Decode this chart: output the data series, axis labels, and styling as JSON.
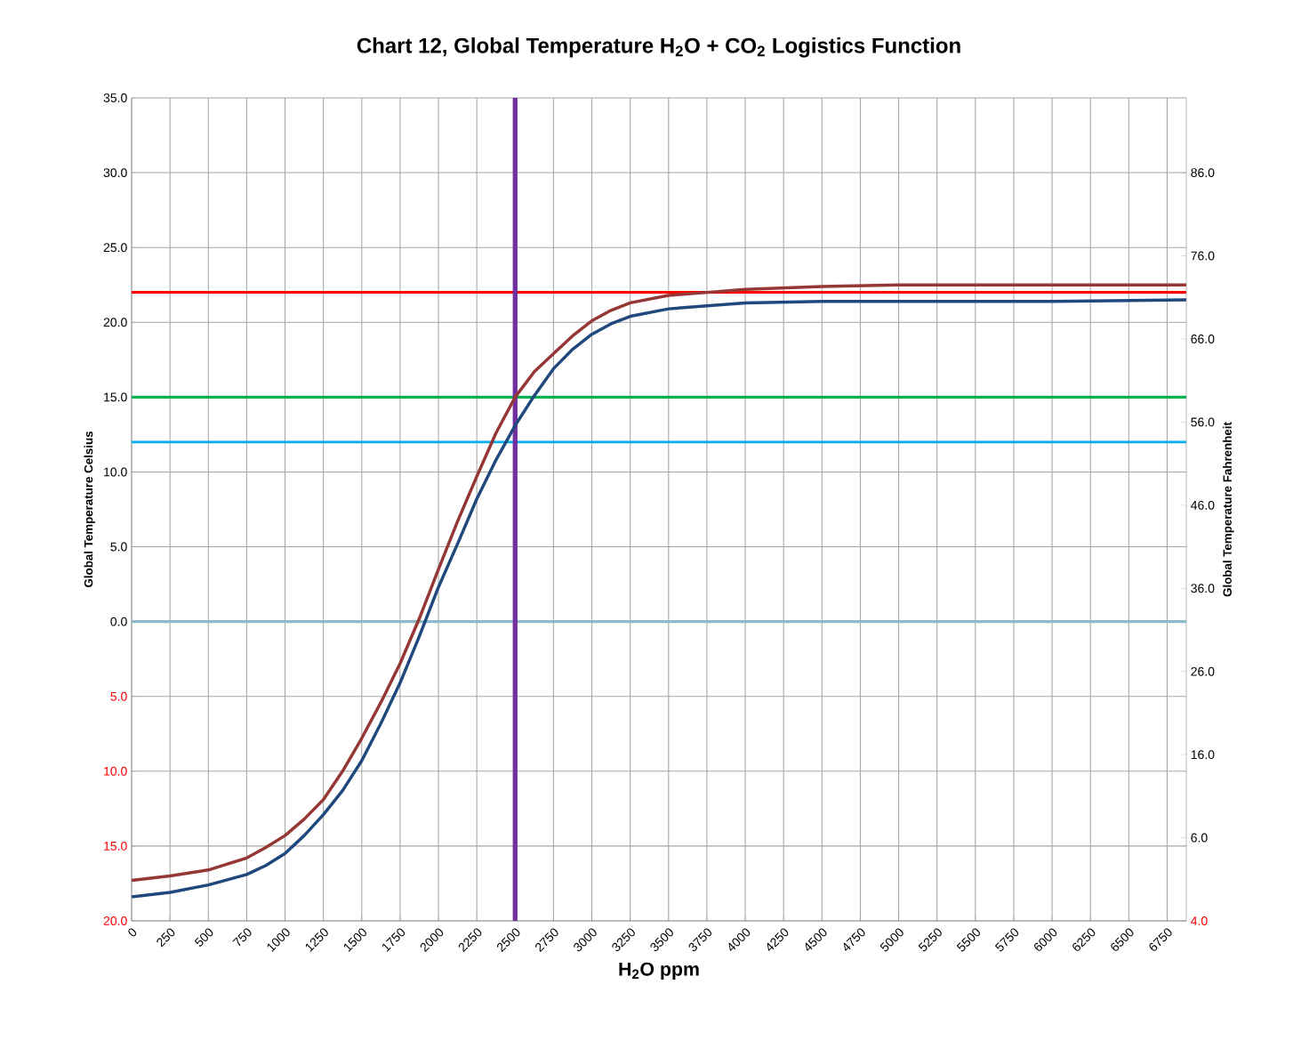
{
  "chart_data": {
    "type": "line",
    "title": "Chart 12, Global Temperature H$_{2}$O + CO$_{2}$ Logistics Function",
    "xlabel": "H$_{2}$O ppm",
    "ylabel": "Global Temperature Celsius",
    "y2label": "Global Temperature Fahrenheit",
    "x": [
      0,
      250,
      500,
      750,
      875,
      1000,
      1125,
      1250,
      1375,
      1500,
      1625,
      1750,
      1875,
      2000,
      2125,
      2250,
      2375,
      2500,
      2625,
      2750,
      2875,
      3000,
      3125,
      3250,
      3500,
      3750,
      4000,
      4500,
      5000,
      6000,
      6875
    ],
    "series": [
      {
        "color": "#953735",
        "values": [
          -17.3,
          -17.0,
          -16.6,
          -15.8,
          -15.1,
          -14.3,
          -13.2,
          -11.9,
          -10.0,
          -7.8,
          -5.4,
          -2.8,
          0.2,
          3.5,
          6.7,
          9.7,
          12.6,
          15.0,
          16.7,
          17.9,
          19.1,
          20.1,
          20.8,
          21.3,
          21.8,
          22.0,
          22.2,
          22.4,
          22.5,
          22.5,
          22.5
        ]
      },
      {
        "color": "#1f497d",
        "values": [
          -18.4,
          -18.1,
          -17.6,
          -16.9,
          -16.3,
          -15.5,
          -14.3,
          -12.9,
          -11.3,
          -9.3,
          -6.8,
          -4.1,
          -1.0,
          2.3,
          5.2,
          8.2,
          10.8,
          13.1,
          15.1,
          16.9,
          18.2,
          19.2,
          19.9,
          20.4,
          20.9,
          21.1,
          21.3,
          21.4,
          21.4,
          21.4,
          21.5
        ]
      }
    ],
    "xlim": [
      0,
      6875
    ],
    "xticks": [
      0,
      250,
      500,
      750,
      1000,
      1250,
      1500,
      1750,
      2000,
      2250,
      2500,
      2750,
      3000,
      3250,
      3500,
      3750,
      4000,
      4250,
      4500,
      4750,
      5000,
      5250,
      5500,
      5750,
      6000,
      6250,
      6500,
      6750
    ],
    "ylim": [
      -20,
      35
    ],
    "yticks": [
      {
        "value": -20,
        "label": "20.0"
      },
      {
        "value": -15,
        "label": "15.0"
      },
      {
        "value": -10,
        "label": "10.0"
      },
      {
        "value": -5,
        "label": "5.0"
      },
      {
        "value": 0,
        "label": "0.0"
      },
      {
        "value": 5,
        "label": "5.0"
      },
      {
        "value": 10,
        "label": "10.0"
      },
      {
        "value": 15,
        "label": "15.0"
      },
      {
        "value": 20,
        "label": "20.0"
      },
      {
        "value": 25,
        "label": "25.0"
      },
      {
        "value": 30,
        "label": "30.0"
      },
      {
        "value": 35,
        "label": "35.0"
      }
    ],
    "y2lim": [
      -4,
      95
    ],
    "y2ticks": [
      {
        "value": -4,
        "label": "4.0"
      },
      {
        "value": 6,
        "label": "6.0"
      },
      {
        "value": 16,
        "label": "16.0"
      },
      {
        "value": 26,
        "label": "26.0"
      },
      {
        "value": 36,
        "label": "36.0"
      },
      {
        "value": 46,
        "label": "46.0"
      },
      {
        "value": 56,
        "label": "56.0"
      },
      {
        "value": 66,
        "label": "66.0"
      },
      {
        "value": 76,
        "label": "76.0"
      },
      {
        "value": 86,
        "label": "86.0"
      }
    ],
    "ref_lines": [
      {
        "axis": "y",
        "value": 22,
        "color": "#ff0000"
      },
      {
        "axis": "y",
        "value": 15,
        "color": "#00b050"
      },
      {
        "axis": "y",
        "value": 12,
        "color": "#00b0f0"
      },
      {
        "axis": "y",
        "value": 0,
        "color": "#8db9ca"
      },
      {
        "axis": "x",
        "value": 2500,
        "color": "#7030a0"
      }
    ],
    "grid": true,
    "marker": "none",
    "line_style": "solid"
  }
}
